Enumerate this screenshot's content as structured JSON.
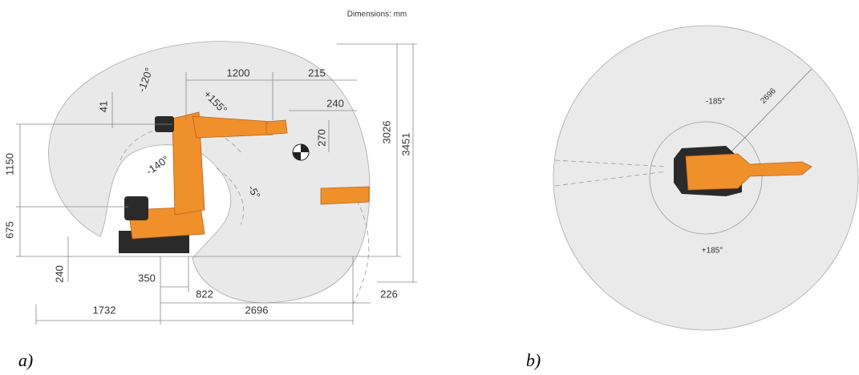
{
  "header": {
    "note": "Dimensions: mm"
  },
  "panel_a": {
    "caption": "a)",
    "labels": [
      "1200",
      "215",
      "240",
      "41",
      "-120°",
      "+155°",
      "270",
      "3026",
      "3451",
      "1150",
      "-140°",
      "-5°",
      "675",
      "240",
      "350",
      "822",
      "226",
      "1732",
      "2696"
    ]
  },
  "panel_b": {
    "caption": "b)",
    "labels": [
      "-185°",
      "2696",
      "+185°"
    ]
  }
}
